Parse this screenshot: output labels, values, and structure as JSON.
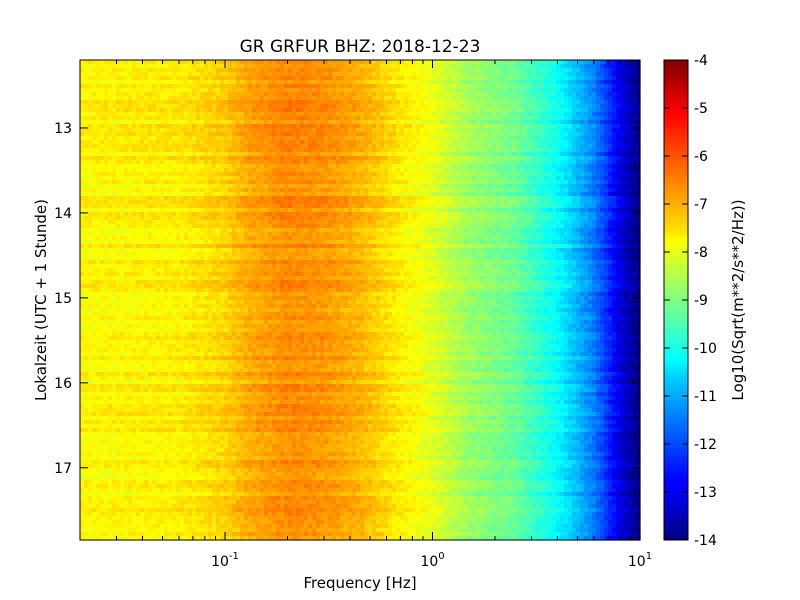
{
  "chart_data": {
    "type": "heatmap",
    "title": "GR GRFUR BHZ: 2018-12-23",
    "xlabel": "Frequency [Hz]",
    "ylabel": "Lokalzeit (UTC + 1 Stunde)",
    "x_scale": "log",
    "xlim": [
      0.02,
      10
    ],
    "ylim": [
      12.2,
      17.85
    ],
    "y_inverted": true,
    "x_ticks": [
      {
        "value": 0.1,
        "label": "10",
        "exp": "-1"
      },
      {
        "value": 1,
        "label": "10",
        "exp": "0"
      },
      {
        "value": 10,
        "label": "10",
        "exp": "1"
      }
    ],
    "y_ticks": [
      {
        "value": 13,
        "label": "13"
      },
      {
        "value": 14,
        "label": "14"
      },
      {
        "value": 15,
        "label": "15"
      },
      {
        "value": 16,
        "label": "16"
      },
      {
        "value": 17,
        "label": "17"
      }
    ],
    "colorbar": {
      "label": "Log10(Sqrt(m**2/s**2/Hz))",
      "range": [
        -14,
        -4
      ],
      "ticks": [
        "-4",
        "-5",
        "-6",
        "-7",
        "-8",
        "-9",
        "-10",
        "-11",
        "-12",
        "-13",
        "-14"
      ],
      "colormap": "jet"
    },
    "spectrum_profile": [
      {
        "frequency": 0.02,
        "value": -7.7
      },
      {
        "frequency": 0.06,
        "value": -7.6
      },
      {
        "frequency": 0.1,
        "value": -7.3
      },
      {
        "frequency": 0.13,
        "value": -6.9
      },
      {
        "frequency": 0.2,
        "value": -6.6
      },
      {
        "frequency": 0.3,
        "value": -6.7
      },
      {
        "frequency": 0.45,
        "value": -7.0
      },
      {
        "frequency": 0.7,
        "value": -7.6
      },
      {
        "frequency": 1.0,
        "value": -8.0
      },
      {
        "frequency": 1.5,
        "value": -8.7
      },
      {
        "frequency": 2.5,
        "value": -9.2
      },
      {
        "frequency": 4.0,
        "value": -10.2
      },
      {
        "frequency": 6.0,
        "value": -11.5
      },
      {
        "frequency": 8.0,
        "value": -13.0
      },
      {
        "frequency": 10.0,
        "value": -14.0
      }
    ]
  }
}
